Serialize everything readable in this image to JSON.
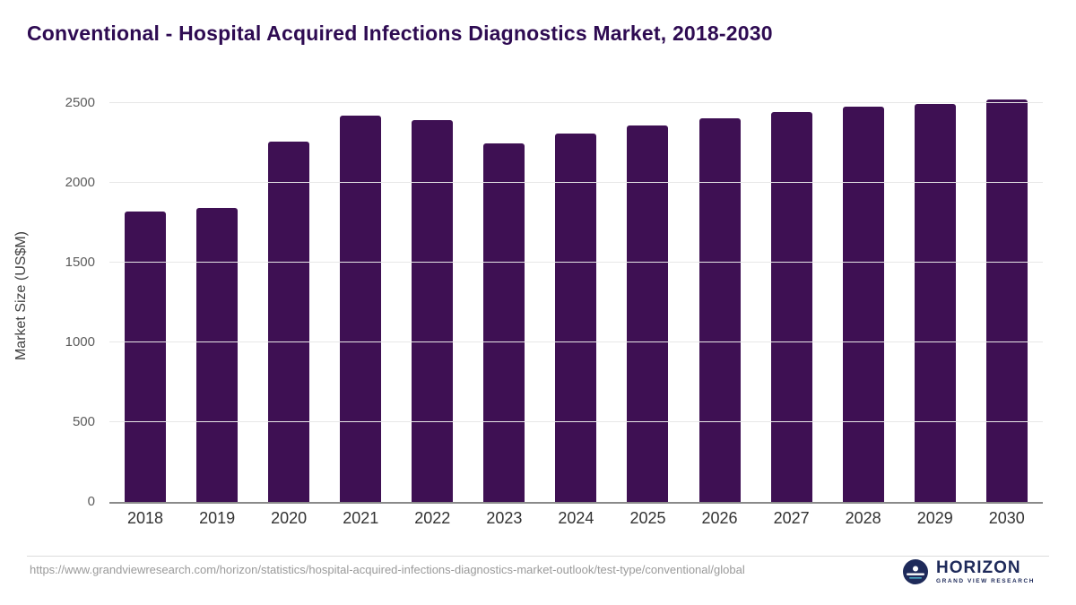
{
  "title": "Conventional - Hospital Acquired Infections Diagnostics Market, 2018-2030",
  "colors": {
    "bar": "#3e1053",
    "title_text": "#2e0b52",
    "grid": "#e7e7e7",
    "axis_line": "#8a8a8a",
    "logo_navy": "#1e2a5a"
  },
  "chart_data": {
    "type": "bar",
    "title": "Conventional - Hospital Acquired Infections Diagnostics Market, 2018-2030",
    "categories": [
      "2018",
      "2019",
      "2020",
      "2021",
      "2022",
      "2023",
      "2024",
      "2025",
      "2026",
      "2027",
      "2028",
      "2029",
      "2030"
    ],
    "values": [
      1820,
      1840,
      2260,
      2420,
      2395,
      2245,
      2310,
      2360,
      2405,
      2445,
      2475,
      2495,
      2520
    ],
    "xlabel": "",
    "ylabel": "Market Size (US$M)",
    "ylim": [
      0,
      2500
    ],
    "yticks": [
      0,
      500,
      1000,
      1500,
      2000,
      2500
    ],
    "grid": "horizontal",
    "legend": "none",
    "bar_color": "#3e1053"
  },
  "footer": {
    "source_url": "https://www.grandviewresearch.com/horizon/statistics/hospital-acquired-infections-diagnostics-market-outlook/test-type/conventional/global",
    "logo_title": "HORIZON",
    "logo_subtitle": "GRAND VIEW RESEARCH"
  }
}
